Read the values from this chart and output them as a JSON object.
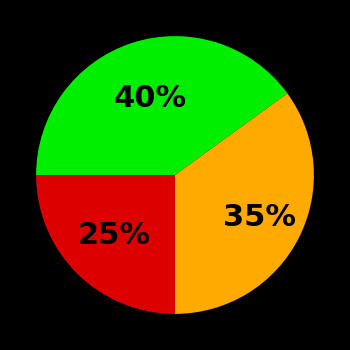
{
  "slices": [
    40,
    35,
    25
  ],
  "colors": [
    "#00ee00",
    "#ffaa00",
    "#dd0000"
  ],
  "labels": [
    "40%",
    "35%",
    "25%"
  ],
  "background_color": "#000000",
  "text_color": "#000000",
  "font_size": 22,
  "font_weight": "bold",
  "startangle": 180,
  "counterclock": false,
  "label_distances": [
    0.58,
    0.68,
    0.62
  ]
}
